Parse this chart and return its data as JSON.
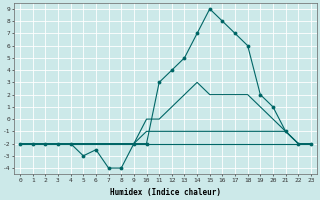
{
  "xlabel": "Humidex (Indice chaleur)",
  "bg_color": "#cce9e9",
  "grid_color": "#ffffff",
  "line_color": "#006666",
  "xlim": [
    -0.5,
    23.5
  ],
  "ylim": [
    -4.5,
    9.5
  ],
  "xticks": [
    0,
    1,
    2,
    3,
    4,
    5,
    6,
    7,
    8,
    9,
    10,
    11,
    12,
    13,
    14,
    15,
    16,
    17,
    18,
    19,
    20,
    21,
    22,
    23
  ],
  "yticks": [
    -4,
    -3,
    -2,
    -1,
    0,
    1,
    2,
    3,
    4,
    5,
    6,
    7,
    8,
    9
  ],
  "s1_x": [
    0,
    1,
    2,
    3,
    4,
    5,
    6,
    7,
    8,
    9,
    10,
    11,
    12,
    13,
    14,
    15,
    16,
    17,
    18,
    19,
    20,
    21,
    22,
    23
  ],
  "s1_y": [
    -2,
    -2,
    -2,
    -2,
    -2,
    -2,
    -2,
    -2,
    -2,
    -2,
    -2,
    -2,
    -2,
    -2,
    -2,
    -2,
    -2,
    -2,
    -2,
    -2,
    -2,
    -2,
    -2,
    -2
  ],
  "s2_x": [
    0,
    1,
    2,
    3,
    4,
    5,
    6,
    7,
    8,
    9,
    10,
    11,
    12,
    13,
    14,
    15,
    16,
    17,
    18,
    19,
    20,
    21,
    22,
    23
  ],
  "s2_y": [
    -2,
    -2,
    -2,
    -2,
    -2,
    -2,
    -2,
    -2,
    -2,
    -2,
    -1,
    -1,
    -1,
    -1,
    -1,
    -1,
    -1,
    -1,
    -1,
    -1,
    -1,
    -1,
    -2,
    -2
  ],
  "s3_x": [
    0,
    1,
    2,
    3,
    4,
    5,
    6,
    7,
    8,
    9,
    10,
    11,
    12,
    13,
    14,
    15,
    16,
    17,
    18,
    19,
    20,
    21,
    22,
    23
  ],
  "s3_y": [
    -2,
    -2,
    -2,
    -2,
    -2,
    -2,
    -2,
    -2,
    -2,
    -2,
    0,
    0,
    1,
    2,
    3,
    2,
    2,
    2,
    2,
    1,
    0,
    -1,
    -2,
    -2
  ],
  "s4_x": [
    0,
    1,
    2,
    3,
    4,
    5,
    6,
    7,
    8,
    9,
    10,
    11,
    12,
    13,
    14,
    15,
    16,
    17,
    18,
    19,
    20,
    21,
    22,
    23
  ],
  "s4_y": [
    -2,
    -2,
    -2,
    -2,
    -2,
    -3,
    -2.5,
    -4,
    -4,
    -2,
    -2,
    3,
    4,
    5,
    7,
    9,
    8,
    7,
    6,
    2,
    1,
    -1,
    -2,
    -2
  ]
}
